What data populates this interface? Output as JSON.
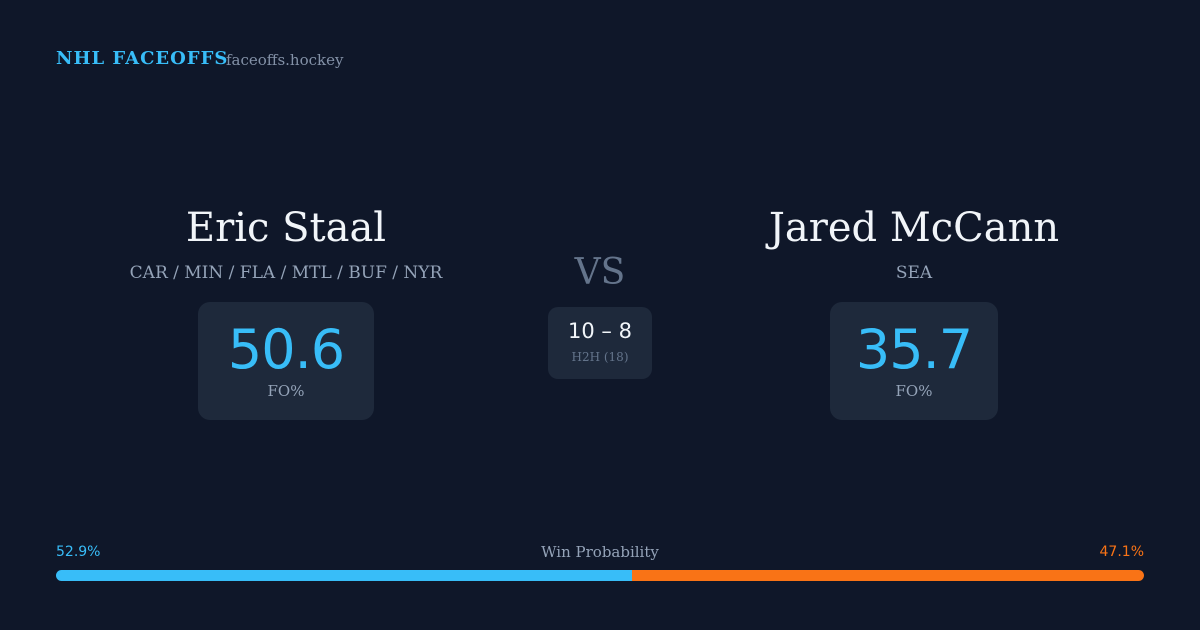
{
  "header": {
    "brand": "NHL FACEOFFS",
    "site": "faceoffs.hockey"
  },
  "players": [
    {
      "name": "Eric Staal",
      "teams": "CAR / MIN / FLA / MTL / BUF / NYR",
      "fo": 50.6,
      "fo_label": "FO%"
    },
    {
      "name": "Jared McCann",
      "teams": "SEA",
      "fo": 35.7,
      "fo_label": "FO%"
    }
  ],
  "versus": "VS",
  "h2h": {
    "score": "10 – 8",
    "label": "H2H (18)"
  },
  "win_probability": {
    "title": "Win Probability",
    "left": {
      "value": 52.9,
      "label": "52.9%",
      "color": "#38bdf8"
    },
    "right": {
      "value": 47.1,
      "label": "47.1%",
      "color": "#f97316"
    }
  }
}
